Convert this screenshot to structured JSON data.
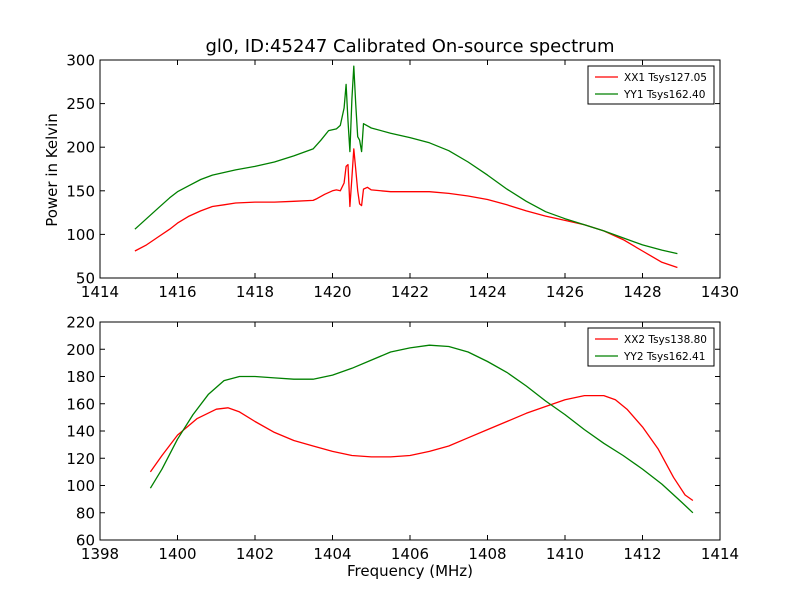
{
  "chart_data": [
    {
      "type": "line",
      "title": "gl0, ID:45247 Calibrated On-source spectrum",
      "xlabel": "",
      "ylabel": "Power in Kelvin",
      "xlim": [
        1414,
        1430
      ],
      "ylim": [
        50,
        300
      ],
      "xticks": [
        1414,
        1416,
        1418,
        1420,
        1422,
        1424,
        1426,
        1428,
        1430
      ],
      "yticks": [
        50,
        100,
        150,
        200,
        250,
        300
      ],
      "legend_position": "top-right",
      "grid": false,
      "series": [
        {
          "name": "XX1 Tsys127.05",
          "color": "#ff0000",
          "points": [
            [
              1414.9,
              81
            ],
            [
              1415.2,
              88
            ],
            [
              1415.5,
              97
            ],
            [
              1415.8,
              106
            ],
            [
              1416.0,
              113
            ],
            [
              1416.3,
              121
            ],
            [
              1416.6,
              127
            ],
            [
              1416.9,
              132
            ],
            [
              1417.2,
              134
            ],
            [
              1417.5,
              136
            ],
            [
              1418.0,
              137
            ],
            [
              1418.5,
              137
            ],
            [
              1419.0,
              138
            ],
            [
              1419.5,
              139
            ],
            [
              1419.6,
              141
            ],
            [
              1419.8,
              146
            ],
            [
              1420.0,
              150
            ],
            [
              1420.1,
              151
            ],
            [
              1420.2,
              150
            ],
            [
              1420.3,
              159
            ],
            [
              1420.35,
              178
            ],
            [
              1420.4,
              180
            ],
            [
              1420.45,
              132
            ],
            [
              1420.5,
              165
            ],
            [
              1420.55,
              198
            ],
            [
              1420.6,
              175
            ],
            [
              1420.65,
              150
            ],
            [
              1420.7,
              135
            ],
            [
              1420.75,
              133
            ],
            [
              1420.8,
              152
            ],
            [
              1420.9,
              154
            ],
            [
              1421.0,
              151
            ],
            [
              1421.5,
              149
            ],
            [
              1422.0,
              149
            ],
            [
              1422.5,
              149
            ],
            [
              1423.0,
              147
            ],
            [
              1423.5,
              144
            ],
            [
              1424.0,
              140
            ],
            [
              1424.5,
              134
            ],
            [
              1425.0,
              127
            ],
            [
              1425.5,
              121
            ],
            [
              1426.0,
              116
            ],
            [
              1426.5,
              111
            ],
            [
              1427.0,
              104
            ],
            [
              1427.5,
              94
            ],
            [
              1428.0,
              81
            ],
            [
              1428.5,
              68
            ],
            [
              1428.9,
              62
            ]
          ]
        },
        {
          "name": "YY1 Tsys162.40",
          "color": "#008000",
          "points": [
            [
              1414.9,
              106
            ],
            [
              1415.2,
              118
            ],
            [
              1415.5,
              130
            ],
            [
              1415.8,
              142
            ],
            [
              1416.0,
              149
            ],
            [
              1416.3,
              156
            ],
            [
              1416.6,
              163
            ],
            [
              1416.9,
              168
            ],
            [
              1417.2,
              171
            ],
            [
              1417.5,
              174
            ],
            [
              1418.0,
              178
            ],
            [
              1418.5,
              183
            ],
            [
              1419.0,
              190
            ],
            [
              1419.5,
              198
            ],
            [
              1419.7,
              208
            ],
            [
              1419.9,
              219
            ],
            [
              1420.1,
              221
            ],
            [
              1420.2,
              225
            ],
            [
              1420.3,
              245
            ],
            [
              1420.35,
              272
            ],
            [
              1420.4,
              230
            ],
            [
              1420.45,
              195
            ],
            [
              1420.5,
              255
            ],
            [
              1420.55,
              293
            ],
            [
              1420.6,
              250
            ],
            [
              1420.65,
              212
            ],
            [
              1420.7,
              208
            ],
            [
              1420.75,
              195
            ],
            [
              1420.8,
              227
            ],
            [
              1421.0,
              222
            ],
            [
              1421.5,
              216
            ],
            [
              1422.0,
              211
            ],
            [
              1422.5,
              205
            ],
            [
              1423.0,
              196
            ],
            [
              1423.5,
              183
            ],
            [
              1424.0,
              168
            ],
            [
              1424.5,
              152
            ],
            [
              1425.0,
              138
            ],
            [
              1425.5,
              126
            ],
            [
              1426.0,
              118
            ],
            [
              1426.5,
              111
            ],
            [
              1427.0,
              104
            ],
            [
              1427.5,
              96
            ],
            [
              1428.0,
              88
            ],
            [
              1428.5,
              82
            ],
            [
              1428.9,
              78
            ]
          ]
        }
      ]
    },
    {
      "type": "line",
      "title": "",
      "xlabel": "Frequency (MHz)",
      "ylabel": "",
      "xlim": [
        1398,
        1414
      ],
      "ylim": [
        60,
        220
      ],
      "xticks": [
        1398,
        1400,
        1402,
        1404,
        1406,
        1408,
        1410,
        1412,
        1414
      ],
      "yticks": [
        60,
        80,
        100,
        120,
        140,
        160,
        180,
        200,
        220
      ],
      "legend_position": "top-right",
      "grid": false,
      "series": [
        {
          "name": "XX2 Tsys138.80",
          "color": "#ff0000",
          "points": [
            [
              1399.3,
              110
            ],
            [
              1399.6,
              122
            ],
            [
              1400.0,
              137
            ],
            [
              1400.5,
              149
            ],
            [
              1401.0,
              156
            ],
            [
              1401.3,
              157
            ],
            [
              1401.6,
              154
            ],
            [
              1402.0,
              147
            ],
            [
              1402.5,
              139
            ],
            [
              1403.0,
              133
            ],
            [
              1403.5,
              129
            ],
            [
              1404.0,
              125
            ],
            [
              1404.5,
              122
            ],
            [
              1405.0,
              121
            ],
            [
              1405.5,
              121
            ],
            [
              1406.0,
              122
            ],
            [
              1406.5,
              125
            ],
            [
              1407.0,
              129
            ],
            [
              1407.5,
              135
            ],
            [
              1408.0,
              141
            ],
            [
              1408.5,
              147
            ],
            [
              1409.0,
              153
            ],
            [
              1409.5,
              158
            ],
            [
              1410.0,
              163
            ],
            [
              1410.5,
              166
            ],
            [
              1411.0,
              166
            ],
            [
              1411.3,
              163
            ],
            [
              1411.6,
              156
            ],
            [
              1412.0,
              143
            ],
            [
              1412.4,
              127
            ],
            [
              1412.8,
              106
            ],
            [
              1413.1,
              93
            ],
            [
              1413.3,
              89
            ]
          ]
        },
        {
          "name": "YY2 Tsys162.41",
          "color": "#008000",
          "points": [
            [
              1399.3,
              98
            ],
            [
              1399.6,
              112
            ],
            [
              1400.0,
              134
            ],
            [
              1400.4,
              152
            ],
            [
              1400.8,
              167
            ],
            [
              1401.2,
              177
            ],
            [
              1401.6,
              180
            ],
            [
              1402.0,
              180
            ],
            [
              1402.5,
              179
            ],
            [
              1403.0,
              178
            ],
            [
              1403.5,
              178
            ],
            [
              1404.0,
              181
            ],
            [
              1404.5,
              186
            ],
            [
              1405.0,
              192
            ],
            [
              1405.5,
              198
            ],
            [
              1406.0,
              201
            ],
            [
              1406.5,
              203
            ],
            [
              1407.0,
              202
            ],
            [
              1407.5,
              198
            ],
            [
              1408.0,
              191
            ],
            [
              1408.5,
              183
            ],
            [
              1409.0,
              173
            ],
            [
              1409.5,
              162
            ],
            [
              1410.0,
              152
            ],
            [
              1410.5,
              141
            ],
            [
              1411.0,
              131
            ],
            [
              1411.5,
              122
            ],
            [
              1412.0,
              112
            ],
            [
              1412.5,
              101
            ],
            [
              1413.0,
              88
            ],
            [
              1413.3,
              80
            ]
          ]
        }
      ]
    }
  ]
}
